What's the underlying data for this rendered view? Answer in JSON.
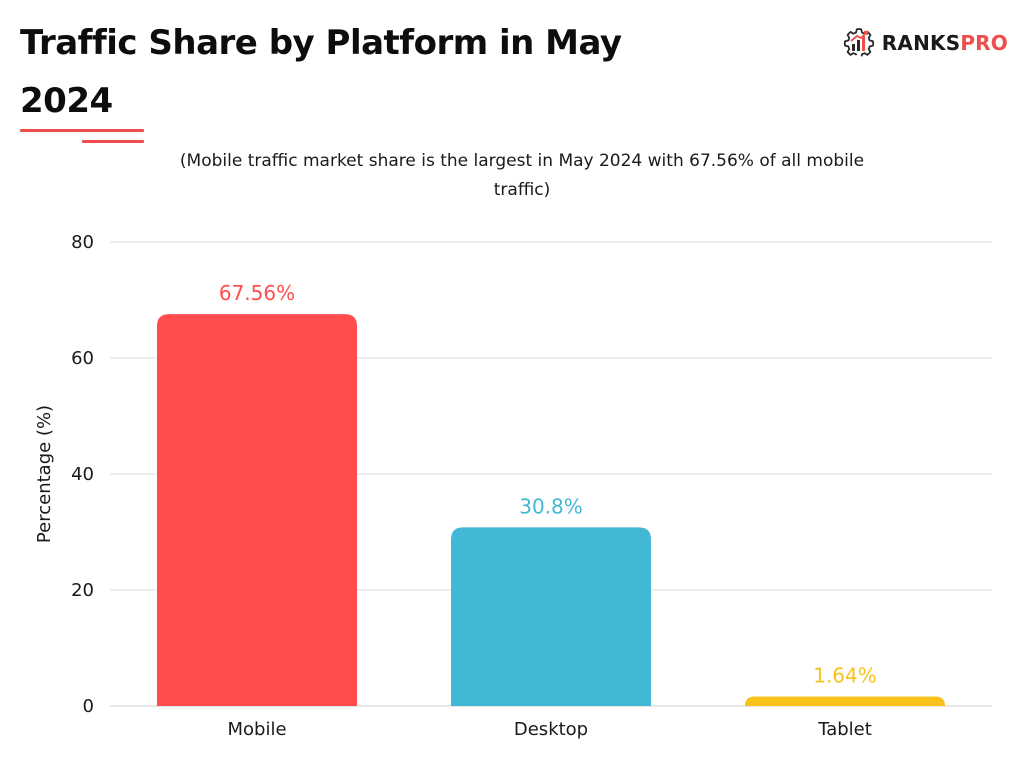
{
  "header": {
    "title": "Traffic Share by Platform in May 2024",
    "accent_color": "#f04d4d"
  },
  "brand": {
    "name_primary": "RANKS",
    "name_accent": "PRO",
    "icon": "gear-chart-icon"
  },
  "chart_data": {
    "type": "bar",
    "subtitle": "(Mobile traffic market share is the largest in May 2024 with 67.56% of all mobile traffic)",
    "categories": [
      "Mobile",
      "Desktop",
      "Tablet"
    ],
    "values": [
      67.56,
      30.8,
      1.64
    ],
    "data_labels": [
      "67.56%",
      "30.8%",
      "1.64%"
    ],
    "colors": [
      "#ff4d4d",
      "#42b8d6",
      "#f7c21c"
    ],
    "xlabel": "",
    "ylabel": "Percentage (%)",
    "ylim": [
      0,
      80
    ],
    "yticks": [
      0,
      20,
      40,
      60,
      80
    ],
    "grid": true,
    "legend": "none"
  }
}
